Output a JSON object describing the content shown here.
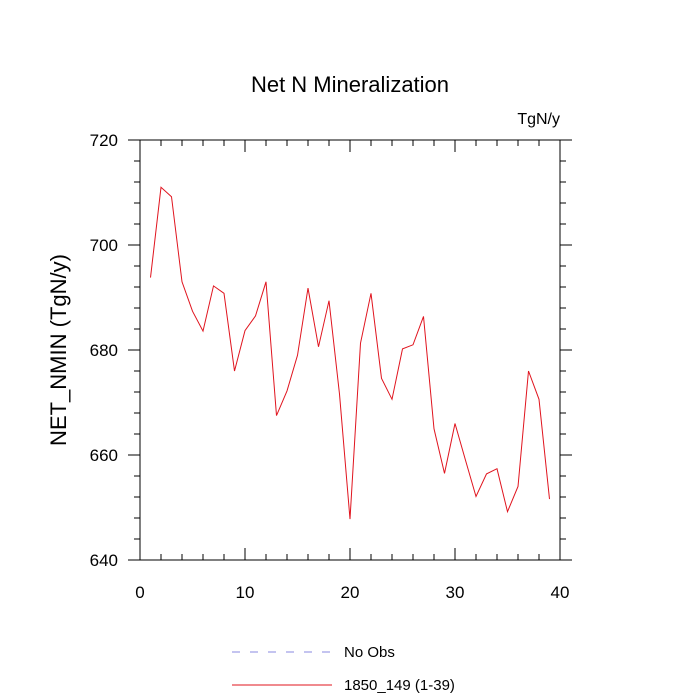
{
  "chart_data": {
    "type": "line",
    "title": "Net N Mineralization",
    "units_label": "TgN/y",
    "xlabel": "",
    "ylabel": "NET_NMIN  (TgN/y)",
    "xlim": [
      0,
      40
    ],
    "ylim": [
      640,
      720
    ],
    "x_ticks": [
      0,
      10,
      20,
      30,
      40
    ],
    "y_ticks": [
      640,
      660,
      680,
      700,
      720
    ],
    "x_tick_labels": [
      "0",
      "10",
      "20",
      "30",
      "40"
    ],
    "y_tick_labels": [
      "640",
      "660",
      "680",
      "700",
      "720"
    ],
    "grid": false,
    "legend": {
      "placement": "bottom",
      "entries": [
        {
          "label": "No Obs",
          "style": "dashed",
          "color": "#8a8ae0"
        },
        {
          "label": "1850_149 (1-39)",
          "style": "solid",
          "color": "#e0141e"
        }
      ]
    },
    "series": [
      {
        "name": "1850_149 (1-39)",
        "color": "#e0141e",
        "x": [
          1,
          2,
          3,
          4,
          5,
          6,
          7,
          8,
          9,
          10,
          11,
          12,
          13,
          14,
          15,
          16,
          17,
          18,
          19,
          20,
          21,
          22,
          23,
          24,
          25,
          26,
          27,
          28,
          29,
          30,
          31,
          32,
          33,
          34,
          35,
          36,
          37,
          38,
          39
        ],
        "y": [
          693.8,
          711.0,
          709.2,
          693.0,
          687.4,
          683.6,
          692.2,
          690.8,
          676.0,
          683.7,
          686.5,
          693.0,
          667.5,
          672.2,
          679.0,
          691.8,
          680.6,
          689.4,
          671.6,
          647.8,
          681.3,
          690.8,
          674.6,
          670.6,
          680.2,
          681.0,
          686.4,
          665.0,
          656.5,
          666.0,
          659.0,
          652.1,
          656.4,
          657.4,
          649.2,
          654.0,
          676.0,
          670.6,
          651.6
        ]
      }
    ]
  }
}
